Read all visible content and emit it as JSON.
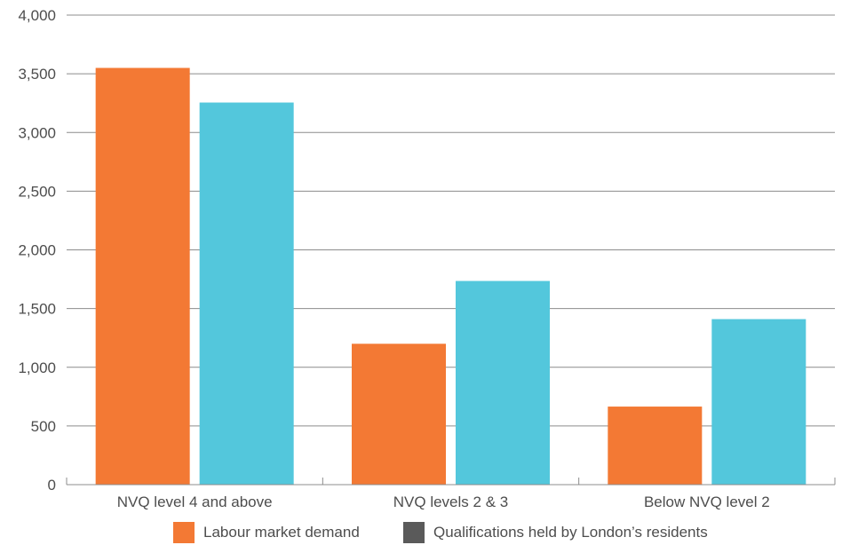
{
  "chart_data": {
    "type": "bar",
    "categories": [
      "NVQ level 4 and above",
      "NVQ levels 2 & 3",
      "Below NVQ level 2"
    ],
    "series": [
      {
        "name": "Labour market demand",
        "values": [
          3550,
          1200,
          665
        ],
        "color": "#f37934"
      },
      {
        "name": "Qualifications held by London’s residents",
        "values": [
          3255,
          1735,
          1410
        ],
        "color": "#53c7dc",
        "legend_swatch_color": "#5a5a5a"
      }
    ],
    "y_ticks": [
      "0",
      "500",
      "1,000",
      "1,500",
      "2,000",
      "2,500",
      "3,000",
      "3,500",
      "4,000"
    ],
    "ylim": [
      0,
      4000
    ],
    "grid": true,
    "legend_position": "bottom"
  }
}
